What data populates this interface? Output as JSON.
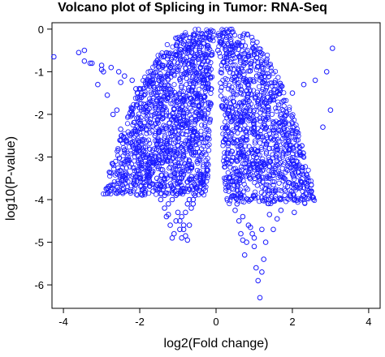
{
  "chart_data": {
    "type": "scatter",
    "title": "Volcano plot of Splicing in Tumor: RNA-Seq",
    "xlabel": "log2(Fold change)",
    "ylabel": "log10(P-value)",
    "xlim": [
      -4.3,
      4.3
    ],
    "ylim": [
      -6.55,
      0.15
    ],
    "xticks": [
      -4,
      -2,
      0,
      2,
      4
    ],
    "xtick_labels": [
      "-4",
      "-2",
      "0",
      "2",
      "4"
    ],
    "yticks": [
      0,
      -1,
      -2,
      -3,
      -4,
      -5,
      -6
    ],
    "ytick_labels": [
      "0",
      "-1",
      "-2",
      "-3",
      "-4",
      "-5",
      "-6"
    ],
    "grid": false,
    "marker": "open-circle",
    "point_color": "#1a1aff",
    "series": [
      {
        "x": [
          -4.25,
          -3.6,
          -3.45,
          -3.3,
          -3.1,
          -2.95,
          -2.85,
          -2.7,
          -2.6,
          -2.5,
          -2.35,
          -2.25,
          -2.15,
          -2.05,
          -1.95,
          -1.85,
          -1.75,
          -1.65,
          -1.55,
          -1.45,
          -1.35,
          -1.25,
          -1.15,
          -1.05,
          -0.95,
          -0.85,
          -0.75,
          -0.65,
          -0.55,
          -0.45,
          -0.35,
          -0.25,
          -0.15,
          -0.08,
          -3.45,
          -3.25,
          -3.0,
          -2.75,
          -2.55,
          -2.4,
          -2.2,
          -2.1,
          -1.95,
          -1.8,
          -1.7,
          -1.6,
          -1.5,
          -1.4,
          -1.35,
          -1.3,
          -1.25,
          -1.2,
          -1.15,
          -1.1,
          -1.05,
          -1.0,
          -0.95,
          -0.9,
          -0.85,
          -0.8,
          -0.75,
          -0.7,
          -0.95,
          -0.9,
          -0.85,
          -0.8,
          -0.75,
          -0.7,
          -0.65,
          -0.6,
          -0.55,
          -0.6,
          -1.3,
          -1.0,
          -2.0,
          -2.5,
          -3.0,
          -0.9,
          -0.7,
          -0.5,
          -0.3,
          -0.1,
          0.1,
          0.3,
          0.5,
          0.8,
          1.1,
          1.4,
          1.7,
          2.0,
          2.3,
          2.6,
          2.9,
          3.05,
          2.05,
          2.5,
          3.0,
          2.8,
          2.25,
          1.95,
          0.9,
          0.85,
          0.95,
          1.0,
          0.75,
          1.05,
          1.1,
          1.15,
          1.2,
          1.25,
          1.3,
          0.6,
          0.65,
          0.7,
          1.5,
          1.6,
          1.7,
          1.8,
          1.9,
          2.0,
          2.1,
          2.2,
          0.55,
          0.35,
          0.25,
          0.15,
          0.05,
          0.5,
          0.7,
          0.9,
          1.0,
          1.2,
          1.4,
          0.8
        ],
        "y": [
          -0.65,
          -0.55,
          -0.5,
          -0.8,
          -1.3,
          -1.0,
          -1.55,
          -2.0,
          -1.9,
          -2.35,
          -2.6,
          -2.5,
          -2.9,
          -2.8,
          -3.2,
          -3.1,
          -3.55,
          -3.8,
          -3.5,
          -4.0,
          -3.9,
          -4.1,
          -4.0,
          -3.9,
          -3.6,
          -3.4,
          -3.2,
          -2.8,
          -2.4,
          -1.8,
          -1.2,
          -0.6,
          -0.25,
          -0.05,
          -0.75,
          -0.8,
          -0.85,
          -0.9,
          -1.0,
          -1.1,
          -1.2,
          -1.4,
          -1.6,
          -1.9,
          -2.2,
          -2.5,
          -3.0,
          -3.3,
          -4.2,
          -4.4,
          -4.35,
          -4.6,
          -4.9,
          -4.8,
          -4.5,
          -4.3,
          -4.7,
          -4.9,
          -4.6,
          -4.3,
          -4.1,
          -4.0,
          -4.5,
          -4.4,
          -4.7,
          -4.85,
          -4.95,
          -4.6,
          -4.2,
          -4.0,
          -3.9,
          -4.1,
          -2.7,
          -3.7,
          -1.85,
          -1.25,
          -0.95,
          -3.5,
          -3.1,
          -2.5,
          -1.6,
          -0.6,
          -0.3,
          -0.9,
          -1.8,
          -2.6,
          -3.1,
          -2.8,
          -2.0,
          -1.5,
          -1.3,
          -1.2,
          -1.0,
          -0.45,
          -4.3,
          -3.8,
          -1.9,
          -2.3,
          -3.6,
          -3.9,
          -4.0,
          -4.6,
          -4.8,
          -5.1,
          -5.3,
          -5.6,
          -5.9,
          -6.3,
          -5.7,
          -5.4,
          -5.0,
          -4.5,
          -4.8,
          -4.95,
          -4.7,
          -4.45,
          -4.25,
          -3.9,
          -3.6,
          -3.4,
          -3.1,
          -2.9,
          -4.1,
          -3.5,
          -2.6,
          -1.8,
          -0.5,
          -4.25,
          -4.4,
          -4.65,
          -4.9,
          -4.7,
          -4.35,
          -5.0
        ]
      }
    ]
  }
}
